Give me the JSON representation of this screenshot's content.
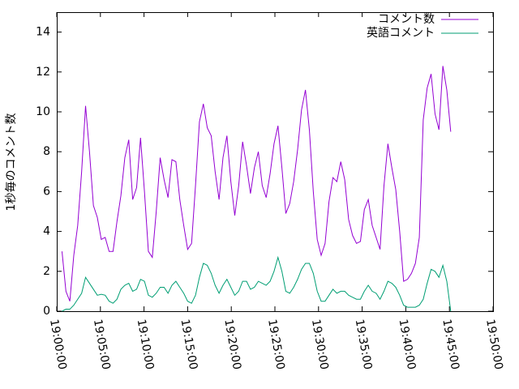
{
  "chart_data": {
    "type": "line",
    "ylabel": "1秒毎のコメント数",
    "x": [
      "19:00:36",
      "19:01:03",
      "19:01:30",
      "19:01:57",
      "19:02:24",
      "19:02:51",
      "19:03:18",
      "19:03:45",
      "19:04:12",
      "19:04:39",
      "19:05:06",
      "19:05:33",
      "19:06:00",
      "19:06:27",
      "19:06:54",
      "19:07:21",
      "19:07:48",
      "19:08:15",
      "19:08:42",
      "19:09:09",
      "19:09:36",
      "19:10:03",
      "19:10:30",
      "19:10:57",
      "19:11:24",
      "19:11:51",
      "19:12:18",
      "19:12:45",
      "19:13:12",
      "19:13:39",
      "19:14:06",
      "19:14:33",
      "19:15:00",
      "19:15:27",
      "19:15:54",
      "19:16:21",
      "19:16:48",
      "19:17:15",
      "19:17:42",
      "19:18:09",
      "19:18:36",
      "19:19:03",
      "19:19:30",
      "19:19:57",
      "19:20:24",
      "19:20:51",
      "19:21:18",
      "19:21:45",
      "19:22:12",
      "19:22:39",
      "19:23:06",
      "19:23:33",
      "19:24:00",
      "19:24:27",
      "19:24:54",
      "19:25:21",
      "19:25:48",
      "19:26:15",
      "19:26:42",
      "19:27:09",
      "19:27:36",
      "19:28:03",
      "19:28:30",
      "19:28:57",
      "19:29:24",
      "19:29:51",
      "19:30:18",
      "19:30:45",
      "19:31:12",
      "19:31:39",
      "19:32:06",
      "19:32:33",
      "19:33:00",
      "19:33:27",
      "19:33:54",
      "19:34:21",
      "19:34:48",
      "19:35:15",
      "19:35:42",
      "19:36:09",
      "19:36:36",
      "19:37:03",
      "19:37:30",
      "19:37:57",
      "19:38:24",
      "19:38:51",
      "19:39:18",
      "19:39:45",
      "19:40:12",
      "19:40:39",
      "19:41:06",
      "19:41:33",
      "19:42:00",
      "19:42:27",
      "19:42:54",
      "19:43:21",
      "19:43:48",
      "19:44:15",
      "19:44:42",
      "19:45:09"
    ],
    "series": [
      {
        "name": "コメント数",
        "color": "#9400d3",
        "values": [
          3.0,
          1.0,
          0.5,
          2.8,
          4.3,
          7.0,
          10.3,
          8.0,
          5.3,
          4.7,
          3.6,
          3.7,
          3.0,
          3.0,
          4.5,
          5.8,
          7.7,
          8.6,
          5.6,
          6.2,
          8.7,
          6.0,
          3.0,
          2.7,
          5.0,
          7.7,
          6.6,
          5.7,
          7.6,
          7.5,
          5.6,
          4.3,
          3.1,
          3.4,
          6.3,
          9.5,
          10.4,
          9.2,
          8.8,
          7.0,
          5.6,
          7.7,
          8.8,
          6.5,
          4.8,
          6.3,
          8.5,
          7.3,
          5.9,
          7.2,
          8.0,
          6.3,
          5.7,
          6.9,
          8.4,
          9.3,
          7.2,
          4.9,
          5.4,
          6.5,
          8.1,
          10.1,
          11.1,
          9.1,
          6.0,
          3.6,
          2.8,
          3.4,
          5.5,
          6.7,
          6.5,
          7.5,
          6.6,
          4.6,
          3.8,
          3.4,
          3.5,
          5.1,
          5.6,
          4.3,
          3.7,
          3.1,
          6.3,
          8.4,
          7.2,
          6.1,
          4.0,
          1.5,
          1.6,
          1.9,
          2.4,
          3.7,
          9.6,
          11.2,
          11.9,
          9.9,
          9.1,
          12.3,
          11.1,
          9.0
        ]
      },
      {
        "name": "英語コメント",
        "color": "#009e73",
        "values": [
          0.0,
          0.1,
          0.1,
          0.3,
          0.6,
          0.9,
          1.7,
          1.4,
          1.1,
          0.8,
          0.85,
          0.8,
          0.5,
          0.4,
          0.6,
          1.1,
          1.3,
          1.4,
          1.0,
          1.1,
          1.6,
          1.5,
          0.8,
          0.7,
          0.9,
          1.2,
          1.2,
          0.9,
          1.3,
          1.5,
          1.2,
          0.9,
          0.5,
          0.4,
          0.8,
          1.7,
          2.4,
          2.3,
          1.9,
          1.3,
          0.9,
          1.3,
          1.6,
          1.2,
          0.8,
          1.0,
          1.5,
          1.5,
          1.1,
          1.2,
          1.5,
          1.4,
          1.3,
          1.5,
          2.0,
          2.7,
          2.0,
          1.0,
          0.9,
          1.2,
          1.6,
          2.1,
          2.4,
          2.4,
          1.9,
          1.0,
          0.5,
          0.5,
          0.8,
          1.1,
          0.9,
          1.0,
          1.0,
          0.8,
          0.7,
          0.6,
          0.6,
          1.0,
          1.3,
          1.0,
          0.9,
          0.6,
          1.0,
          1.5,
          1.4,
          1.2,
          0.8,
          0.3,
          0.2,
          0.2,
          0.2,
          0.3,
          0.6,
          1.4,
          2.1,
          2.0,
          1.7,
          2.3,
          1.5,
          0.0
        ]
      }
    ],
    "xlim": [
      "19:00:00",
      "19:50:00"
    ],
    "xticks": [
      "19:00:00",
      "19:05:00",
      "19:10:00",
      "19:15:00",
      "19:20:00",
      "19:25:00",
      "19:30:00",
      "19:35:00",
      "19:40:00",
      "19:45:00",
      "19:50:00"
    ],
    "ylim": [
      0,
      15
    ],
    "yticks": [
      0,
      2,
      4,
      6,
      8,
      10,
      12,
      14
    ],
    "legend": "top-right",
    "grid": false
  }
}
